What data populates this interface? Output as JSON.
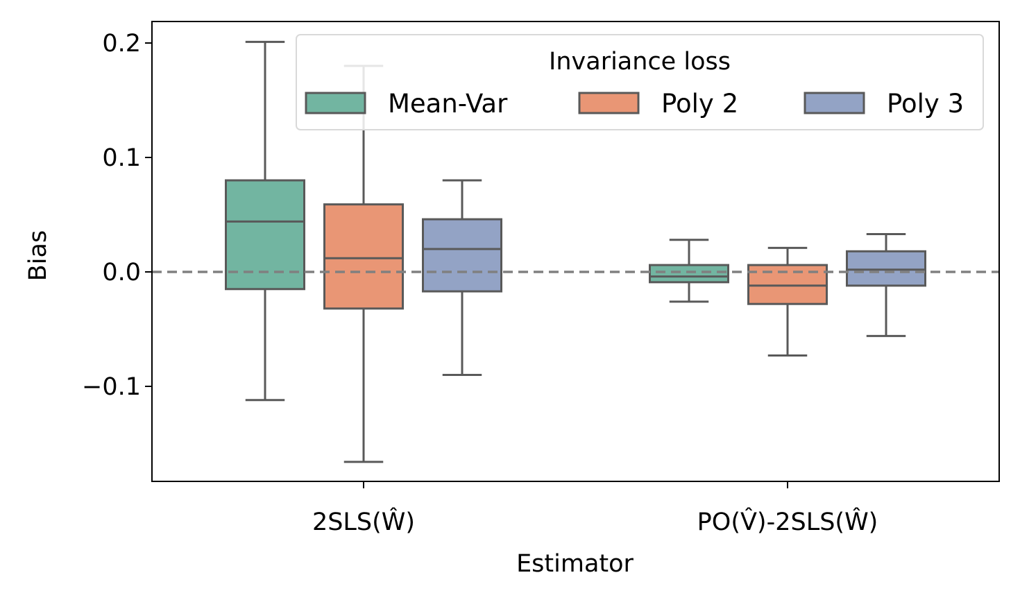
{
  "chart_data": {
    "type": "box",
    "xlabel": "Estimator",
    "ylabel": "Bias",
    "ylim": [
      -0.185,
      0.219
    ],
    "yticks": [
      {
        "value": 0.2,
        "label": "0.2"
      },
      {
        "value": 0.1,
        "label": "0.1"
      },
      {
        "value": 0.0,
        "label": "0.0"
      },
      {
        "value": -0.1,
        "label": "−0.1"
      }
    ],
    "reference_line": {
      "value": 0.0,
      "style": "dashed",
      "color": "#808080"
    },
    "categories": [
      {
        "prefix": "2SLS(",
        "hat_symbols": [],
        "suffix": "",
        "hat": "W",
        "close": ")"
      },
      {
        "prefix": "PO(",
        "hat": "V",
        "middle": ")-2SLS(",
        "hat2": "W",
        "close": ")"
      }
    ],
    "category_labels_plain": [
      "2SLS(Ŵ)",
      "PO(V̂)-2SLS(Ŵ)"
    ],
    "legend": {
      "title": "Invariance loss",
      "position": "top-right",
      "entries": [
        "Mean-Var",
        "Poly 2",
        "Poly 3"
      ]
    },
    "series": [
      {
        "name": "Mean-Var",
        "color": "#72b5a1",
        "boxes": [
          {
            "whislo": -0.112,
            "q1": -0.015,
            "med": 0.044,
            "q3": 0.08,
            "whishi": 0.201
          },
          {
            "whislo": -0.026,
            "q1": -0.009,
            "med": -0.004,
            "q3": 0.006,
            "whishi": 0.028
          }
        ]
      },
      {
        "name": "Poly 2",
        "color": "#e99675",
        "boxes": [
          {
            "whislo": -0.166,
            "q1": -0.032,
            "med": 0.012,
            "q3": 0.059,
            "whishi": 0.18
          },
          {
            "whislo": -0.073,
            "q1": -0.028,
            "med": -0.012,
            "q3": 0.006,
            "whishi": 0.021
          }
        ]
      },
      {
        "name": "Poly 3",
        "color": "#93a3c5",
        "boxes": [
          {
            "whislo": -0.09,
            "q1": -0.017,
            "med": 0.02,
            "q3": 0.046,
            "whishi": 0.08
          },
          {
            "whislo": -0.056,
            "q1": -0.012,
            "med": 0.002,
            "q3": 0.018,
            "whishi": 0.033
          }
        ]
      }
    ]
  }
}
